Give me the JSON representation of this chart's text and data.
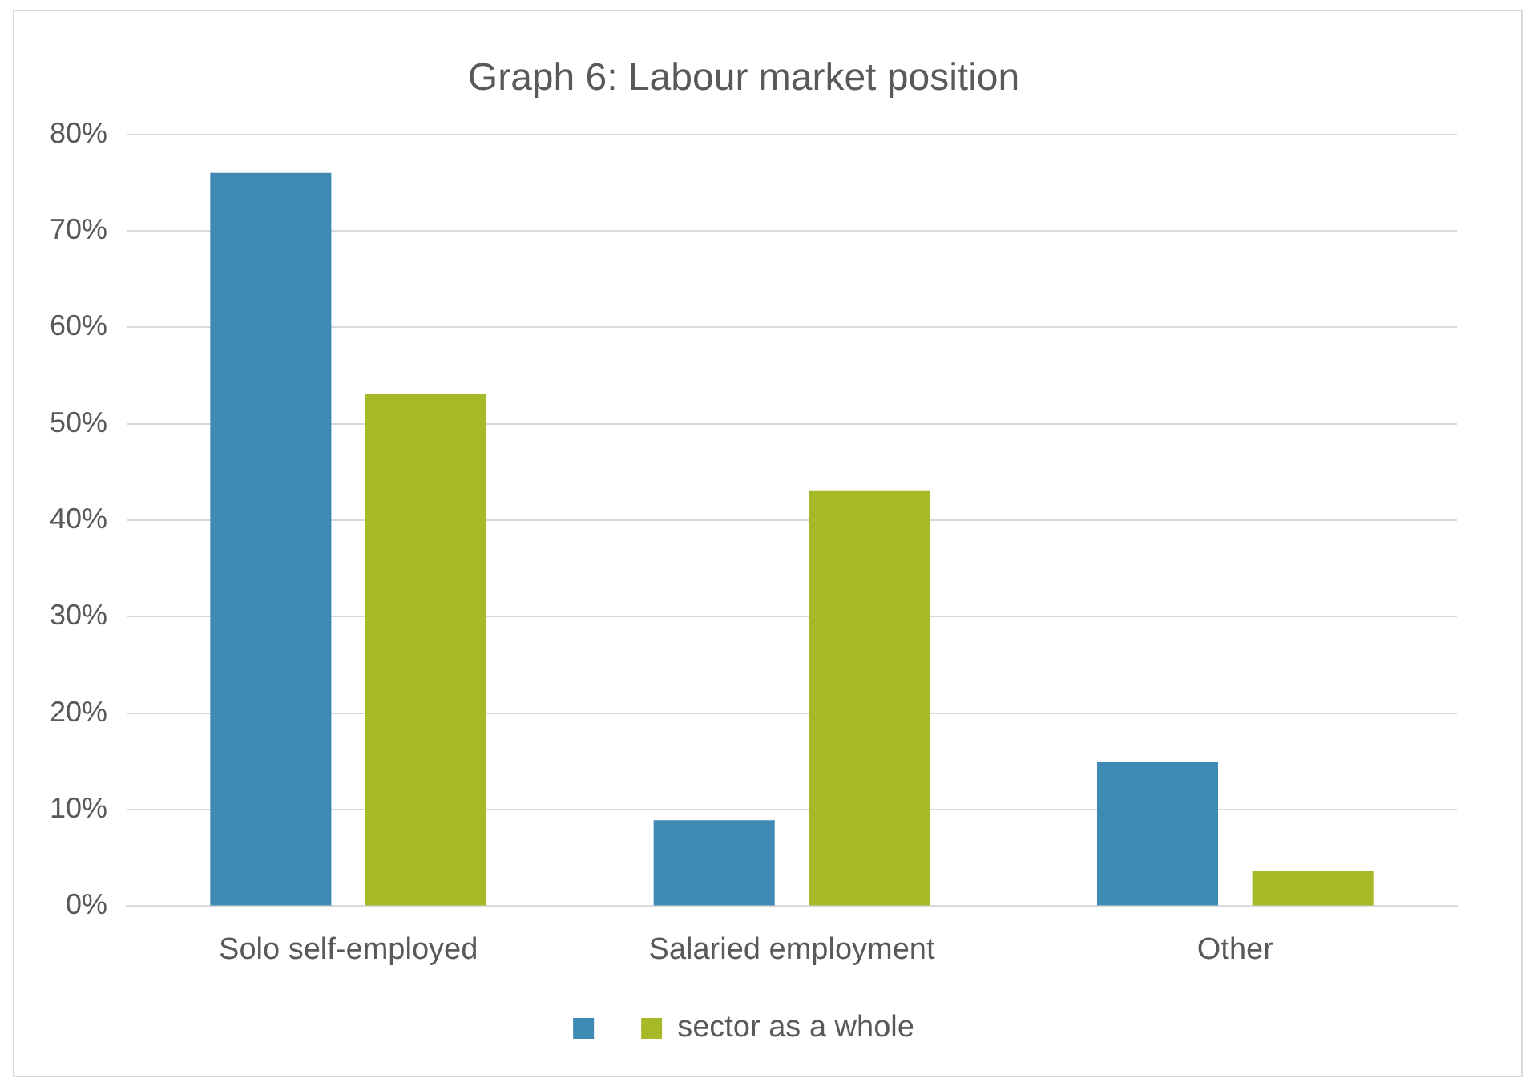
{
  "chart_data": {
    "type": "bar",
    "title": "Graph 6: Labour market position",
    "categories": [
      "Solo self-employed",
      "Salaried employment",
      "Other"
    ],
    "series": [
      {
        "color": "#3f89b5",
        "values": [
          76,
          8.9,
          15
        ]
      },
      {
        "name": "sector as a whole",
        "color": "#a6b926",
        "values": [
          53.1,
          43.1,
          3.6
        ]
      }
    ],
    "ylim": [
      0,
      80
    ],
    "yticks": [
      {
        "value": 0,
        "label": "0%"
      },
      {
        "value": 10,
        "label": "10%"
      },
      {
        "value": 20,
        "label": "20%"
      },
      {
        "value": 30,
        "label": "30%"
      },
      {
        "value": 40,
        "label": "40%"
      },
      {
        "value": 50,
        "label": "50%"
      },
      {
        "value": 60,
        "label": "60%"
      },
      {
        "value": 70,
        "label": "70%"
      },
      {
        "value": 80,
        "label": "80%"
      }
    ],
    "grid": "y",
    "legend": "bottom"
  }
}
